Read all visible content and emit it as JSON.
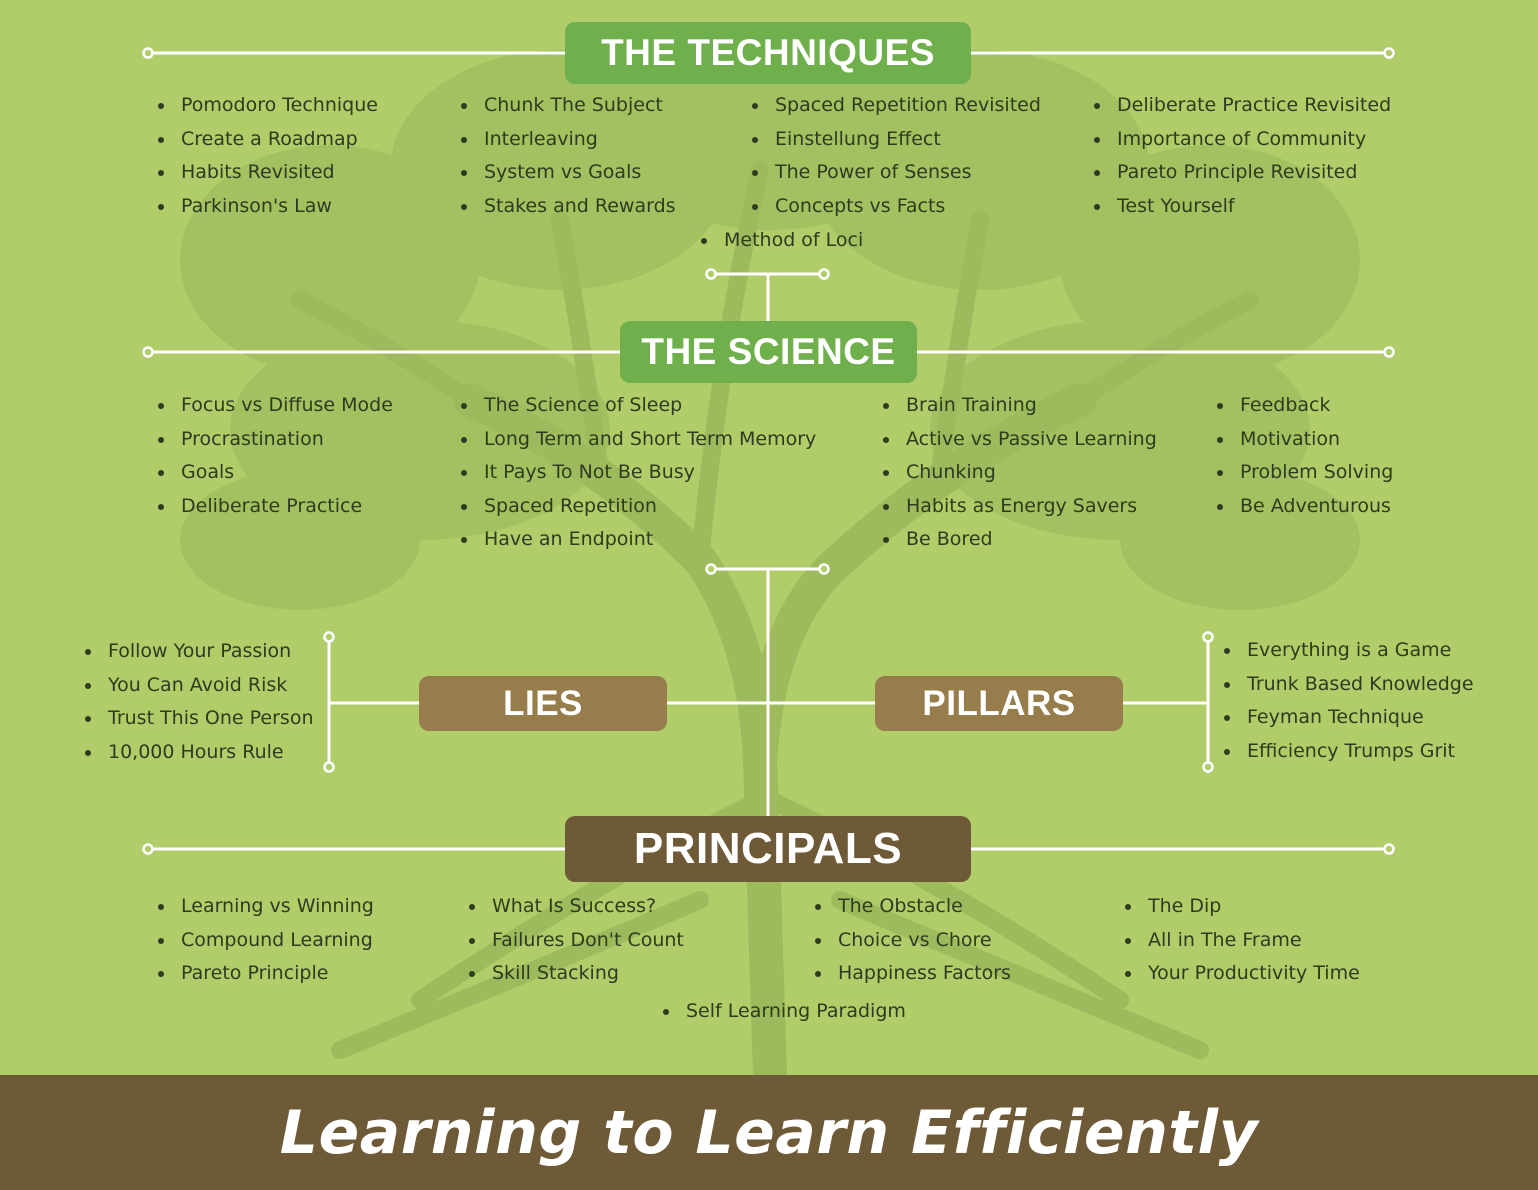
{
  "sections": {
    "techniques": {
      "title": "THE TECHNIQUES",
      "columns": [
        [
          "Pomodoro Technique",
          "Create a Roadmap",
          "Habits Revisited",
          "Parkinson's Law"
        ],
        [
          "Chunk The Subject",
          "Interleaving",
          "System vs Goals",
          "Stakes and Rewards"
        ],
        [
          "Spaced Repetition Revisited",
          "Einstellung Effect",
          "The Power of Senses",
          "Concepts vs Facts"
        ],
        [
          "Deliberate Practice Revisited",
          "Importance of Community",
          "Pareto Principle Revisited",
          "Test Yourself"
        ]
      ],
      "extra": [
        "Method of Loci"
      ]
    },
    "science": {
      "title": "THE SCIENCE",
      "columns": [
        [
          "Focus vs Diffuse Mode",
          "Procrastination",
          "Goals",
          "Deliberate Practice"
        ],
        [
          "The Science of Sleep",
          "Long Term and Short Term Memory",
          "It Pays To Not Be Busy",
          "Spaced Repetition",
          "Have an Endpoint"
        ],
        [
          "Brain Training",
          "Active vs Passive Learning",
          "Chunking",
          "Habits as Energy Savers",
          "Be Bored"
        ],
        [
          "Feedback",
          "Motivation",
          "Problem Solving",
          "Be Adventurous"
        ]
      ]
    },
    "lies": {
      "title": "LIES",
      "items": [
        "Follow Your Passion",
        "You Can Avoid Risk",
        "Trust This One Person",
        "10,000 Hours Rule"
      ]
    },
    "pillars": {
      "title": "PILLARS",
      "items": [
        "Everything is a Game",
        "Trunk Based Knowledge",
        "Feyman Technique",
        "Efficiency Trumps Grit"
      ]
    },
    "principals": {
      "title": "PRINCIPALS",
      "columns": [
        [
          "Learning vs Winning",
          "Compound Learning",
          "Pareto Principle"
        ],
        [
          "What Is Success?",
          "Failures Don't Count",
          "Skill Stacking"
        ],
        [
          "The Obstacle",
          "Choice vs Chore",
          "Happiness Factors"
        ],
        [
          "The Dip",
          "All in The Frame",
          "Your Productivity Time"
        ]
      ],
      "extra": [
        "Self Learning Paradigm"
      ]
    }
  },
  "footer": {
    "title": "Learning to Learn Efficiently"
  },
  "colors": {
    "background": "#b0cd6a",
    "header_green": "#6fb04c",
    "header_brown": "#967d4b",
    "header_dark": "#6e5a37",
    "footer": "#6e5a37",
    "text": "#2f3a1f",
    "connector": "#ffffff"
  }
}
